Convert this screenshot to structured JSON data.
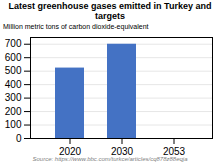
{
  "chart_data": {
    "type": "bar",
    "title": "Latest greenhouse gases emitted in Turkey and targets",
    "categories": [
      "2020",
      "2030",
      "2053"
    ],
    "values": [
      523,
      700,
      null
    ],
    "color": "#4472C4",
    "ylabel": "Million metric tons of carbon dioxide-equivalent",
    "ylim": [
      0,
      750
    ],
    "yticks": [
      0,
      100,
      200,
      300,
      400,
      500,
      600,
      700
    ],
    "grid": true,
    "source": "Source: https://www.bbc.com/turkce/articles/cq878z88eqja"
  }
}
